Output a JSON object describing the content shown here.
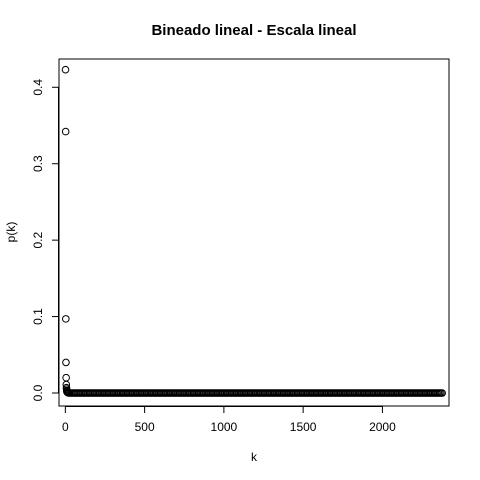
{
  "chart_data": {
    "type": "scatter",
    "title": "Bineado lineal - Escala lineal",
    "xlabel": "k",
    "ylabel": "p(k)",
    "xlim": [
      -40,
      2420
    ],
    "ylim": [
      -0.017,
      0.437
    ],
    "x_ticks": [
      0,
      500,
      1000,
      1500,
      2000
    ],
    "x_tick_labels": [
      "0",
      "500",
      "1000",
      "1500",
      "2000"
    ],
    "y_ticks": [
      0.0,
      0.1,
      0.2,
      0.3,
      0.4
    ],
    "y_tick_labels": [
      "0.0",
      "0.1",
      "0.2",
      "0.3",
      "0.4"
    ],
    "grid": false,
    "marker": "open-circle",
    "points_explicit": [
      [
        1,
        0.423
      ],
      [
        2,
        0.342
      ],
      [
        3,
        0.097
      ],
      [
        4,
        0.04
      ],
      [
        5,
        0.02
      ],
      [
        6,
        0.011
      ],
      [
        7,
        0.007
      ],
      [
        8,
        0.005
      ],
      [
        9,
        0.003
      ],
      [
        10,
        0.002
      ],
      [
        11,
        0.0015
      ],
      [
        12,
        0.001
      ],
      [
        14,
        0.0008
      ],
      [
        16,
        0.0005
      ],
      [
        18,
        0.0003
      ],
      [
        20,
        0.0002
      ]
    ],
    "tail": {
      "x_start": 25,
      "x_end": 2380,
      "step": 8,
      "y": 0.0
    }
  }
}
